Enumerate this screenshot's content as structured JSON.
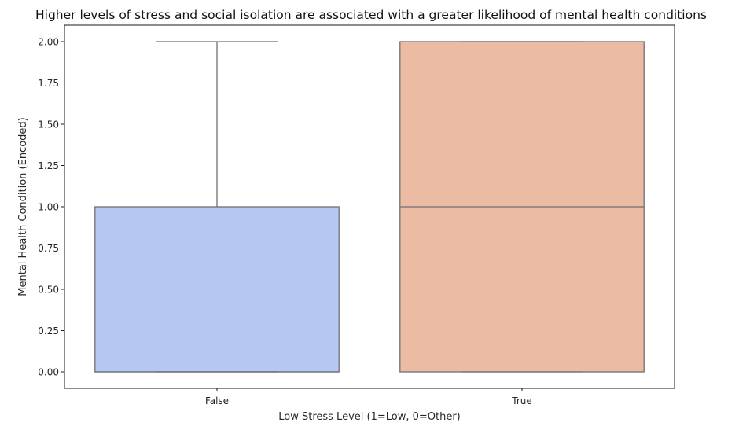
{
  "chart_data": {
    "type": "box",
    "title": "Higher levels of stress and social isolation are associated with a greater likelihood of mental health conditions",
    "xlabel": "Low Stress Level (1=Low, 0=Other)",
    "ylabel": "Mental Health Condition (Encoded)",
    "categories": [
      "False",
      "True"
    ],
    "ylim": [
      -0.1,
      2.1
    ],
    "yticks": [
      "0.00",
      "0.25",
      "0.50",
      "0.75",
      "1.00",
      "1.25",
      "1.50",
      "1.75",
      "2.00"
    ],
    "boxes": [
      {
        "category": "False",
        "min": 0,
        "q1": 0,
        "median": 0,
        "q3": 1,
        "max": 2,
        "color": "#b4c8f2"
      },
      {
        "category": "True",
        "min": 0,
        "q1": 0,
        "median": 1,
        "q3": 2,
        "max": 2,
        "color": "#ecbba4"
      }
    ],
    "grid": false,
    "line_color": "#707070"
  }
}
